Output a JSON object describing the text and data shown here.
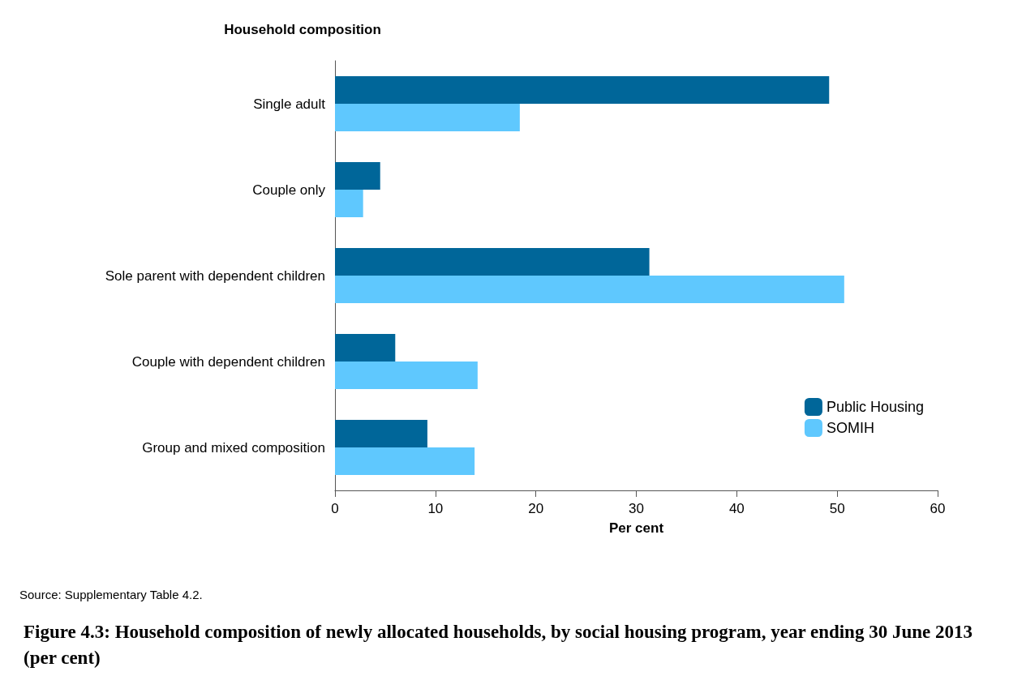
{
  "chart_data": {
    "type": "bar",
    "orientation": "horizontal",
    "title": "Figure 4.3: Household composition of newly allocated households, by social housing program, year ending 30 June 2013 (per cent)",
    "ylabel": "Household composition",
    "xlabel": "Per cent",
    "annotations": [
      "Source: Supplementary Table 4.2."
    ],
    "categories": [
      "Single adult",
      "Couple only",
      "Sole parent with dependent children",
      "Couple with dependent children",
      "Group and mixed composition"
    ],
    "series": [
      {
        "name": "Public Housing",
        "color": "#006699",
        "values": [
          49.2,
          4.5,
          31.3,
          6.0,
          9.2
        ]
      },
      {
        "name": "SOMIH",
        "color": "#5fc8fe",
        "values": [
          18.4,
          2.8,
          50.7,
          14.2,
          13.9
        ]
      }
    ],
    "xlim": [
      0,
      60
    ],
    "xticks": [
      0,
      10,
      20,
      30,
      40,
      50,
      60
    ],
    "grid": false,
    "legend": "bottom right"
  }
}
